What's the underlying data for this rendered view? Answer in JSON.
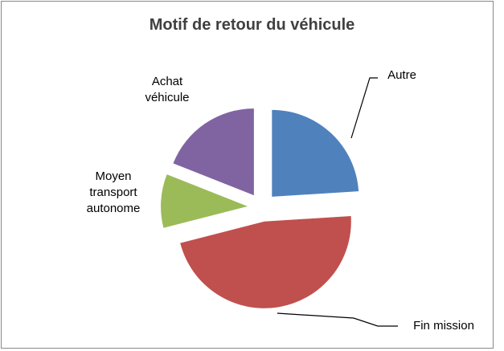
{
  "chart_data": {
    "type": "pie",
    "title": "Motif de retour du véhicule",
    "categories": [
      "Autre",
      "Fin mission",
      "Moyen transport autonome",
      "Achat véhicule"
    ],
    "values": [
      24,
      47,
      10,
      19
    ],
    "colors": [
      "#4f81bd",
      "#c0504d",
      "#9bbb59",
      "#8064a2"
    ]
  }
}
